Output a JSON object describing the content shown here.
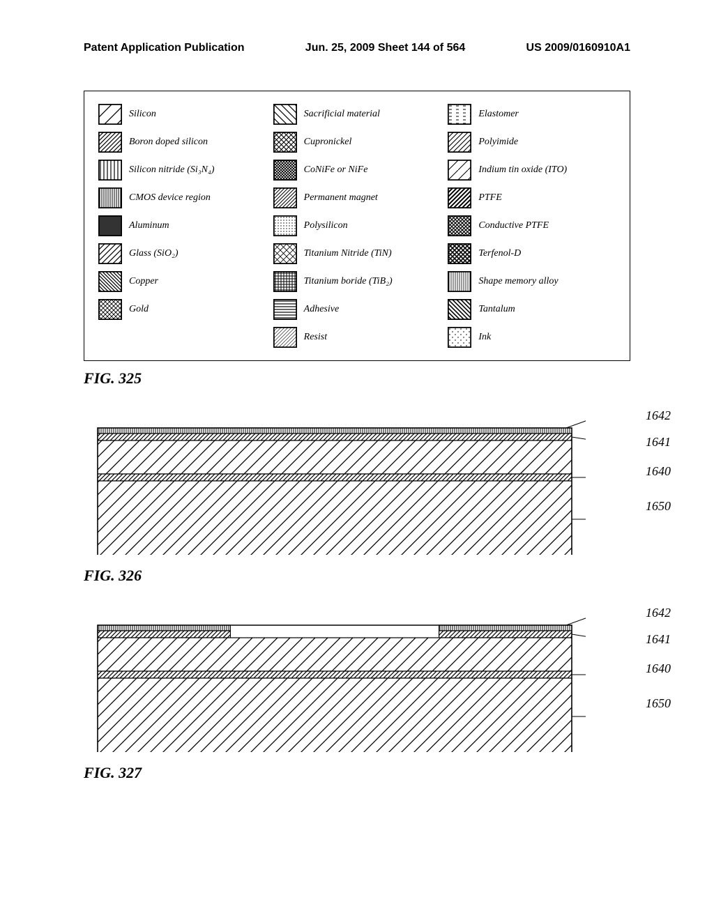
{
  "header": {
    "left": "Patent Application Publication",
    "center": "Jun. 25, 2009  Sheet 144 of 564",
    "right": "US 2009/0160910A1"
  },
  "legend": {
    "columns": [
      [
        {
          "label": "Silicon",
          "pattern": "diag-sparse"
        },
        {
          "label": "Boron doped silicon",
          "pattern": "diag-dense"
        },
        {
          "label": "Silicon nitride (Si₃N₄)",
          "pattern": "vertical"
        },
        {
          "label": "CMOS device region",
          "pattern": "vertical-dense"
        },
        {
          "label": "Aluminum",
          "pattern": "solid"
        },
        {
          "label": "Glass (SiO₂)",
          "pattern": "diag-med"
        },
        {
          "label": "Copper",
          "pattern": "diag-rev-dense"
        },
        {
          "label": "Gold",
          "pattern": "crosshatch-wavy"
        }
      ],
      [
        {
          "label": "Sacrificial material",
          "pattern": "diag-rev"
        },
        {
          "label": "Cupronickel",
          "pattern": "crosshatch"
        },
        {
          "label": "CoNiFe or NiFe",
          "pattern": "crosshatch-dense"
        },
        {
          "label": "Permanent magnet",
          "pattern": "diag-fine"
        },
        {
          "label": "Polysilicon",
          "pattern": "dots-dense"
        },
        {
          "label": "Titanium Nitride (TiN)",
          "pattern": "crosshatch-light"
        },
        {
          "label": "Titanium boride (TiB₂)",
          "pattern": "grid-dense"
        },
        {
          "label": "Adhesive",
          "pattern": "horizontal"
        },
        {
          "label": "Resist",
          "pattern": "diag-fine-light"
        }
      ],
      [
        {
          "label": "Elastomer",
          "pattern": "dashes"
        },
        {
          "label": "Polyimide",
          "pattern": "diag-med2"
        },
        {
          "label": "Indium tin oxide (ITO)",
          "pattern": "diag-spaced"
        },
        {
          "label": "PTFE",
          "pattern": "diag-bold"
        },
        {
          "label": "Conductive PTFE",
          "pattern": "crosshatch-fine"
        },
        {
          "label": "Terfenol-D",
          "pattern": "crosshatch-bold"
        },
        {
          "label": "Shape memory alloy",
          "pattern": "vertical-fine"
        },
        {
          "label": "Tantalum",
          "pattern": "diag-rev-bold"
        },
        {
          "label": "Ink",
          "pattern": "dots-sparse"
        }
      ]
    ]
  },
  "figures": {
    "fig325": {
      "caption": "FIG. 325"
    },
    "fig326": {
      "caption": "FIG. 326",
      "refs": [
        "1642",
        "1641",
        "1640",
        "1650"
      ],
      "layers": [
        {
          "thickness": 8,
          "pattern": "vertical-dense",
          "partial": false
        },
        {
          "thickness": 10,
          "pattern": "diag-dense",
          "partial": false
        },
        {
          "thickness": 48,
          "pattern": "diag-sparse",
          "partial": false
        },
        {
          "thickness": 10,
          "pattern": "diag-dense",
          "partial": false
        },
        {
          "thickness": 110,
          "pattern": "diag-sparse",
          "partial": false
        }
      ]
    },
    "fig327": {
      "caption": "FIG. 327",
      "refs": [
        "1642",
        "1641",
        "1640",
        "1650"
      ],
      "layers": [
        {
          "thickness": 8,
          "pattern": "vertical-dense",
          "partial": true
        },
        {
          "thickness": 10,
          "pattern": "diag-dense",
          "partial": true
        },
        {
          "thickness": 48,
          "pattern": "diag-sparse",
          "partial": false
        },
        {
          "thickness": 10,
          "pattern": "diag-dense",
          "partial": false
        },
        {
          "thickness": 110,
          "pattern": "diag-sparse",
          "partial": false
        }
      ]
    }
  },
  "colors": {
    "line": "#000000",
    "bg": "#ffffff"
  }
}
